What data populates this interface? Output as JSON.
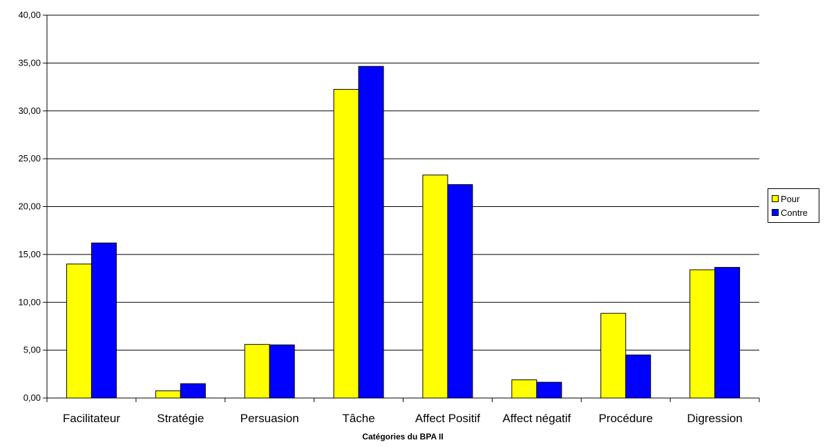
{
  "chart_data": {
    "type": "bar",
    "title": "",
    "xlabel": "Catégories du BPA II",
    "ylabel": "",
    "categories": [
      "Facilitateur",
      "Stratégie",
      "Persuasion",
      "Tâche",
      "Affect Positif",
      "Affect négatif",
      "Procédure",
      "Digression"
    ],
    "series": [
      {
        "name": "Pour",
        "color": "#FFFF00",
        "values": [
          14.0,
          0.75,
          5.6,
          32.25,
          23.3,
          1.9,
          8.85,
          13.4
        ]
      },
      {
        "name": "Contre",
        "color": "#0000FF",
        "values": [
          16.2,
          1.5,
          5.55,
          34.65,
          22.3,
          1.65,
          4.5,
          13.65
        ]
      }
    ],
    "ylim": [
      0,
      40
    ],
    "ytick_values": [
      0,
      5,
      10,
      15,
      20,
      25,
      30,
      35,
      40
    ],
    "ytick_labels": [
      "0,00",
      "5,00",
      "10,00",
      "15,00",
      "20,00",
      "25,00",
      "30,00",
      "35,00",
      "40,00"
    ],
    "grid": true,
    "legend_position": "right"
  }
}
